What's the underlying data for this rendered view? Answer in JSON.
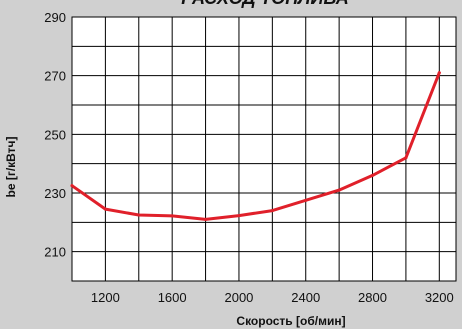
{
  "chart_data": {
    "type": "line",
    "title": "РАСХОД ТОПЛИВА",
    "xlabel": "Скорость  [об/мин]",
    "ylabel": "be [г/кВтч]",
    "xlim": [
      1000,
      3300
    ],
    "ylim": [
      200,
      290
    ],
    "x_ticks": [
      1200,
      1600,
      2000,
      2400,
      2800,
      3200
    ],
    "y_ticks": [
      210,
      230,
      250,
      270,
      290
    ],
    "x_grid": [
      1000,
      1200,
      1400,
      1600,
      1800,
      2000,
      2200,
      2400,
      2600,
      2800,
      3000,
      3200
    ],
    "y_grid": [
      200,
      210,
      220,
      230,
      240,
      250,
      260,
      270,
      280,
      290
    ],
    "grid": true,
    "line_color": "#e0202a",
    "series": [
      {
        "x": [
          1000,
          1200,
          1400,
          1600,
          1800,
          2000,
          2200,
          2400,
          2600,
          2800,
          3000,
          3200
        ],
        "y": [
          232.5,
          224.5,
          222.5,
          222.2,
          221,
          222.3,
          224,
          227.5,
          231,
          236,
          242,
          271
        ]
      }
    ]
  }
}
